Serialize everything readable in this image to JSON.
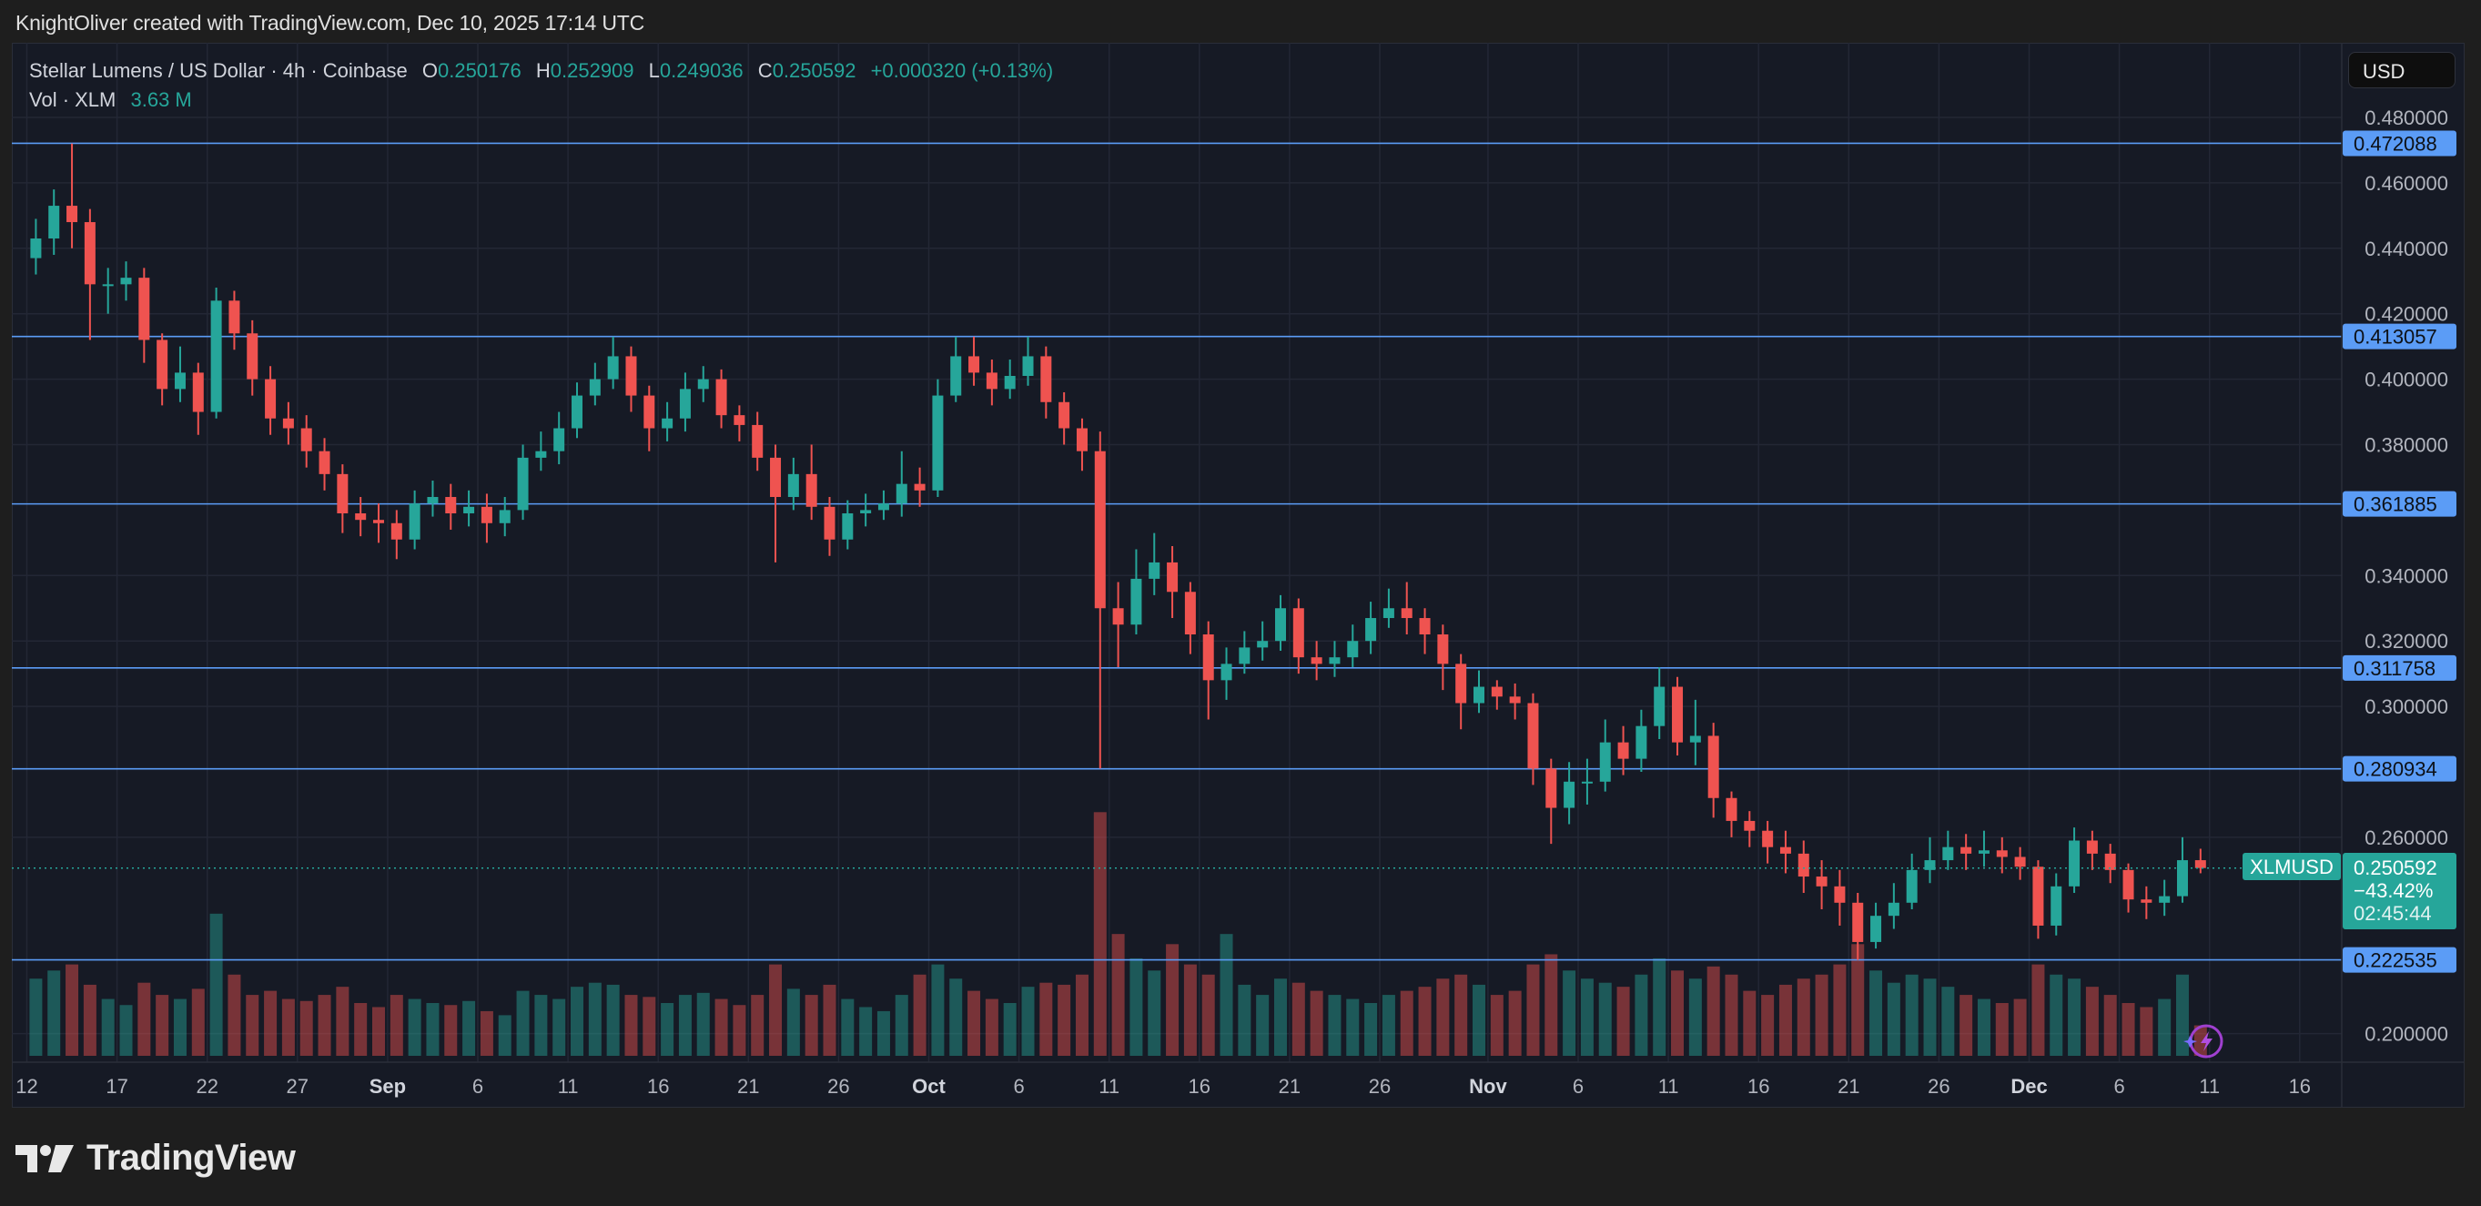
{
  "attribution": "KnightOliver created with TradingView.com, Dec 10, 2025 17:14 UTC",
  "legend": {
    "symbol": "Stellar Lumens / US Dollar · 4h · Coinbase",
    "o_label": "O",
    "o": "0.250176",
    "h_label": "H",
    "h": "0.252909",
    "l_label": "L",
    "l": "0.249036",
    "c_label": "C",
    "c": "0.250592",
    "change": "+0.000320 (+0.13%)",
    "vol_label": "Vol · XLM",
    "vol": "3.63 M"
  },
  "currency_button": "USD",
  "price_tag": {
    "symbol": "XLMUSD",
    "price": "0.250592",
    "change_pct": "−43.42%",
    "countdown": "02:45:44"
  },
  "logo_text": "TradingView",
  "colors": {
    "up": "#26a69a",
    "down": "#ef5350",
    "level_line": "#5b9cf6",
    "background": "#161a25",
    "grid": "#232735"
  },
  "icons": [
    "tradingview-logo-icon",
    "lightning-icon"
  ],
  "chart_data": {
    "type": "candlestick",
    "title": "Stellar Lumens / US Dollar · 4h · Coinbase",
    "ylim": [
      0.186,
      0.489
    ],
    "grid": true,
    "y_ticks": [
      "0.480000",
      "0.460000",
      "0.440000",
      "0.420000",
      "0.400000",
      "0.380000",
      "0.340000",
      "0.320000",
      "0.300000",
      "0.260000",
      "0.200000"
    ],
    "x_ticks": [
      {
        "label": "12",
        "date_index": 0
      },
      {
        "label": "17",
        "date_index": 5
      },
      {
        "label": "22",
        "date_index": 10
      },
      {
        "label": "27",
        "date_index": 15
      },
      {
        "label": "Sep",
        "date_index": 20,
        "bold": true
      },
      {
        "label": "6",
        "date_index": 25
      },
      {
        "label": "11",
        "date_index": 30
      },
      {
        "label": "16",
        "date_index": 35
      },
      {
        "label": "21",
        "date_index": 40
      },
      {
        "label": "26",
        "date_index": 45
      },
      {
        "label": "Oct",
        "date_index": 50,
        "bold": true
      },
      {
        "label": "6",
        "date_index": 55
      },
      {
        "label": "11",
        "date_index": 60
      },
      {
        "label": "16",
        "date_index": 65
      },
      {
        "label": "21",
        "date_index": 70
      },
      {
        "label": "26",
        "date_index": 75
      },
      {
        "label": "Nov",
        "date_index": 81,
        "bold": true
      },
      {
        "label": "6",
        "date_index": 86
      },
      {
        "label": "11",
        "date_index": 91
      },
      {
        "label": "16",
        "date_index": 96
      },
      {
        "label": "21",
        "date_index": 101
      },
      {
        "label": "26",
        "date_index": 106
      },
      {
        "label": "Dec",
        "date_index": 111,
        "bold": true
      },
      {
        "label": "6",
        "date_index": 116
      },
      {
        "label": "11",
        "date_index": 121
      },
      {
        "label": "16",
        "date_index": 126
      }
    ],
    "horizontal_levels": [
      "0.472088",
      "0.413057",
      "0.361885",
      "0.311758",
      "0.280934",
      "0.222535"
    ],
    "last_price": 0.250592,
    "candle_fields": [
      "date",
      "open",
      "high",
      "low",
      "close"
    ],
    "candles": [
      [
        "Aug 12",
        0.437,
        0.449,
        0.432,
        0.443
      ],
      [
        "Aug 13",
        0.443,
        0.458,
        0.438,
        0.453
      ],
      [
        "Aug 14",
        0.453,
        0.472,
        0.44,
        0.448
      ],
      [
        "Aug 15",
        0.448,
        0.452,
        0.412,
        0.429
      ],
      [
        "Aug 16",
        0.429,
        0.434,
        0.42,
        0.429
      ],
      [
        "Aug 17",
        0.429,
        0.436,
        0.424,
        0.431
      ],
      [
        "Aug 18",
        0.431,
        0.434,
        0.405,
        0.412
      ],
      [
        "Aug 19",
        0.412,
        0.414,
        0.392,
        0.397
      ],
      [
        "Aug 20",
        0.397,
        0.41,
        0.393,
        0.402
      ],
      [
        "Aug 21",
        0.402,
        0.405,
        0.383,
        0.39
      ],
      [
        "Aug 22",
        0.39,
        0.428,
        0.388,
        0.424
      ],
      [
        "Aug 23",
        0.424,
        0.427,
        0.409,
        0.414
      ],
      [
        "Aug 24",
        0.414,
        0.418,
        0.395,
        0.4
      ],
      [
        "Aug 25",
        0.4,
        0.404,
        0.383,
        0.388
      ],
      [
        "Aug 26",
        0.388,
        0.393,
        0.38,
        0.385
      ],
      [
        "Aug 27",
        0.385,
        0.389,
        0.373,
        0.378
      ],
      [
        "Aug 28",
        0.378,
        0.382,
        0.366,
        0.371
      ],
      [
        "Aug 29",
        0.371,
        0.374,
        0.353,
        0.359
      ],
      [
        "Aug 30",
        0.359,
        0.364,
        0.352,
        0.357
      ],
      [
        "Aug 31",
        0.357,
        0.362,
        0.35,
        0.356
      ],
      [
        "Sep 1",
        0.356,
        0.36,
        0.345,
        0.351
      ],
      [
        "Sep 2",
        0.351,
        0.366,
        0.348,
        0.362
      ],
      [
        "Sep 3",
        0.362,
        0.369,
        0.358,
        0.364
      ],
      [
        "Sep 4",
        0.364,
        0.368,
        0.354,
        0.359
      ],
      [
        "Sep 5",
        0.359,
        0.366,
        0.355,
        0.361
      ],
      [
        "Sep 6",
        0.361,
        0.365,
        0.35,
        0.356
      ],
      [
        "Sep 7",
        0.356,
        0.364,
        0.352,
        0.36
      ],
      [
        "Sep 8",
        0.36,
        0.38,
        0.357,
        0.376
      ],
      [
        "Sep 9",
        0.376,
        0.384,
        0.372,
        0.378
      ],
      [
        "Sep 10",
        0.378,
        0.39,
        0.374,
        0.385
      ],
      [
        "Sep 11",
        0.385,
        0.399,
        0.382,
        0.395
      ],
      [
        "Sep 12",
        0.395,
        0.405,
        0.392,
        0.4
      ],
      [
        "Sep 13",
        0.4,
        0.413,
        0.397,
        0.407
      ],
      [
        "Sep 14",
        0.407,
        0.41,
        0.39,
        0.395
      ],
      [
        "Sep 15",
        0.395,
        0.398,
        0.378,
        0.385
      ],
      [
        "Sep 16",
        0.385,
        0.393,
        0.381,
        0.388
      ],
      [
        "Sep 17",
        0.388,
        0.402,
        0.384,
        0.397
      ],
      [
        "Sep 18",
        0.397,
        0.404,
        0.393,
        0.4
      ],
      [
        "Sep 19",
        0.4,
        0.403,
        0.385,
        0.389
      ],
      [
        "Sep 20",
        0.389,
        0.392,
        0.381,
        0.386
      ],
      [
        "Sep 21",
        0.386,
        0.39,
        0.372,
        0.376
      ],
      [
        "Sep 22",
        0.376,
        0.38,
        0.344,
        0.364
      ],
      [
        "Sep 23",
        0.364,
        0.376,
        0.36,
        0.371
      ],
      [
        "Sep 24",
        0.371,
        0.38,
        0.357,
        0.361
      ],
      [
        "Sep 25",
        0.361,
        0.364,
        0.346,
        0.351
      ],
      [
        "Sep 26",
        0.351,
        0.363,
        0.348,
        0.359
      ],
      [
        "Sep 27",
        0.359,
        0.365,
        0.355,
        0.36
      ],
      [
        "Sep 28",
        0.36,
        0.366,
        0.357,
        0.362
      ],
      [
        "Sep 29",
        0.362,
        0.378,
        0.358,
        0.368
      ],
      [
        "Sep 30",
        0.368,
        0.373,
        0.361,
        0.366
      ],
      [
        "Oct 1",
        0.366,
        0.4,
        0.364,
        0.395
      ],
      [
        "Oct 2",
        0.395,
        0.413,
        0.393,
        0.407
      ],
      [
        "Oct 3",
        0.407,
        0.413,
        0.398,
        0.402
      ],
      [
        "Oct 4",
        0.402,
        0.406,
        0.392,
        0.397
      ],
      [
        "Oct 5",
        0.397,
        0.406,
        0.394,
        0.401
      ],
      [
        "Oct 6",
        0.401,
        0.413,
        0.398,
        0.407
      ],
      [
        "Oct 7",
        0.407,
        0.41,
        0.388,
        0.393
      ],
      [
        "Oct 8",
        0.393,
        0.396,
        0.38,
        0.385
      ],
      [
        "Oct 9",
        0.385,
        0.388,
        0.372,
        0.378
      ],
      [
        "Oct 10",
        0.378,
        0.384,
        0.281,
        0.33
      ],
      [
        "Oct 11",
        0.33,
        0.338,
        0.312,
        0.325
      ],
      [
        "Oct 12",
        0.325,
        0.348,
        0.322,
        0.339
      ],
      [
        "Oct 13",
        0.339,
        0.353,
        0.334,
        0.344
      ],
      [
        "Oct 14",
        0.344,
        0.349,
        0.327,
        0.335
      ],
      [
        "Oct 15",
        0.335,
        0.338,
        0.316,
        0.322
      ],
      [
        "Oct 16",
        0.322,
        0.326,
        0.296,
        0.308
      ],
      [
        "Oct 17",
        0.308,
        0.318,
        0.302,
        0.313
      ],
      [
        "Oct 18",
        0.313,
        0.323,
        0.31,
        0.318
      ],
      [
        "Oct 19",
        0.318,
        0.326,
        0.314,
        0.32
      ],
      [
        "Oct 20",
        0.32,
        0.334,
        0.317,
        0.33
      ],
      [
        "Oct 21",
        0.33,
        0.333,
        0.31,
        0.315
      ],
      [
        "Oct 22",
        0.315,
        0.32,
        0.308,
        0.313
      ],
      [
        "Oct 23",
        0.313,
        0.32,
        0.309,
        0.315
      ],
      [
        "Oct 24",
        0.315,
        0.325,
        0.312,
        0.32
      ],
      [
        "Oct 25",
        0.32,
        0.332,
        0.316,
        0.327
      ],
      [
        "Oct 26",
        0.327,
        0.336,
        0.324,
        0.33
      ],
      [
        "Oct 27",
        0.33,
        0.338,
        0.322,
        0.327
      ],
      [
        "Oct 28",
        0.327,
        0.33,
        0.316,
        0.322
      ],
      [
        "Oct 29",
        0.322,
        0.325,
        0.305,
        0.313
      ],
      [
        "Oct 30",
        0.313,
        0.316,
        0.293,
        0.301
      ],
      [
        "Oct 31",
        0.301,
        0.311,
        0.298,
        0.306
      ],
      [
        "Nov 1",
        0.306,
        0.308,
        0.299,
        0.303
      ],
      [
        "Nov 2",
        0.303,
        0.307,
        0.296,
        0.301
      ],
      [
        "Nov 3",
        0.301,
        0.304,
        0.276,
        0.281
      ],
      [
        "Nov 4",
        0.281,
        0.284,
        0.258,
        0.269
      ],
      [
        "Nov 5",
        0.269,
        0.283,
        0.264,
        0.277
      ],
      [
        "Nov 6",
        0.277,
        0.284,
        0.27,
        0.277
      ],
      [
        "Nov 7",
        0.277,
        0.296,
        0.274,
        0.289
      ],
      [
        "Nov 8",
        0.289,
        0.294,
        0.279,
        0.284
      ],
      [
        "Nov 9",
        0.284,
        0.299,
        0.28,
        0.294
      ],
      [
        "Nov 10",
        0.294,
        0.312,
        0.29,
        0.306
      ],
      [
        "Nov 11",
        0.306,
        0.309,
        0.285,
        0.289
      ],
      [
        "Nov 12",
        0.289,
        0.302,
        0.282,
        0.291
      ],
      [
        "Nov 13",
        0.291,
        0.295,
        0.266,
        0.272
      ],
      [
        "Nov 14",
        0.272,
        0.274,
        0.26,
        0.265
      ],
      [
        "Nov 15",
        0.265,
        0.268,
        0.257,
        0.262
      ],
      [
        "Nov 16",
        0.262,
        0.265,
        0.252,
        0.257
      ],
      [
        "Nov 17",
        0.257,
        0.262,
        0.249,
        0.255
      ],
      [
        "Nov 18",
        0.255,
        0.259,
        0.243,
        0.248
      ],
      [
        "Nov 19",
        0.248,
        0.253,
        0.238,
        0.245
      ],
      [
        "Nov 20",
        0.245,
        0.25,
        0.233,
        0.24
      ],
      [
        "Nov 21",
        0.24,
        0.243,
        0.2225,
        0.228
      ],
      [
        "Nov 22",
        0.228,
        0.24,
        0.226,
        0.236
      ],
      [
        "Nov 23",
        0.236,
        0.246,
        0.232,
        0.24
      ],
      [
        "Nov 24",
        0.24,
        0.255,
        0.238,
        0.25
      ],
      [
        "Nov 25",
        0.25,
        0.26,
        0.246,
        0.253
      ],
      [
        "Nov 26",
        0.253,
        0.262,
        0.25,
        0.257
      ],
      [
        "Nov 27",
        0.257,
        0.261,
        0.25,
        0.255
      ],
      [
        "Nov 28",
        0.255,
        0.262,
        0.251,
        0.256
      ],
      [
        "Nov 29",
        0.256,
        0.26,
        0.249,
        0.254
      ],
      [
        "Nov 30",
        0.254,
        0.257,
        0.247,
        0.251
      ],
      [
        "Dec 1",
        0.251,
        0.253,
        0.229,
        0.233
      ],
      [
        "Dec 2",
        0.233,
        0.249,
        0.23,
        0.245
      ],
      [
        "Dec 3",
        0.245,
        0.263,
        0.243,
        0.259
      ],
      [
        "Dec 4",
        0.259,
        0.262,
        0.25,
        0.255
      ],
      [
        "Dec 5",
        0.255,
        0.258,
        0.246,
        0.25
      ],
      [
        "Dec 6",
        0.25,
        0.252,
        0.237,
        0.241
      ],
      [
        "Dec 7",
        0.241,
        0.245,
        0.235,
        0.24
      ],
      [
        "Dec 8",
        0.24,
        0.247,
        0.236,
        0.242
      ],
      [
        "Dec 9",
        0.242,
        0.26,
        0.24,
        0.253
      ],
      [
        "Dec 10",
        0.253,
        0.2565,
        0.249,
        0.2506
      ]
    ],
    "volume": [
      38,
      42,
      45,
      35,
      28,
      25,
      36,
      30,
      28,
      33,
      70,
      40,
      30,
      32,
      28,
      27,
      30,
      34,
      26,
      24,
      30,
      28,
      26,
      25,
      27,
      22,
      20,
      32,
      30,
      28,
      34,
      36,
      35,
      30,
      29,
      26,
      30,
      31,
      28,
      25,
      30,
      45,
      33,
      30,
      35,
      28,
      24,
      22,
      30,
      40,
      45,
      38,
      32,
      28,
      26,
      34,
      36,
      35,
      40,
      120,
      60,
      48,
      42,
      55,
      45,
      40,
      60,
      35,
      30,
      38,
      36,
      32,
      30,
      28,
      26,
      30,
      32,
      34,
      38,
      40,
      35,
      30,
      32,
      45,
      50,
      42,
      38,
      36,
      34,
      40,
      48,
      42,
      38,
      44,
      40,
      32,
      30,
      35,
      38,
      40,
      45,
      55,
      42,
      36,
      40,
      38,
      34,
      30,
      28,
      26,
      28,
      45,
      40,
      38,
      34,
      30,
      26,
      24,
      28,
      40,
      15
    ]
  }
}
